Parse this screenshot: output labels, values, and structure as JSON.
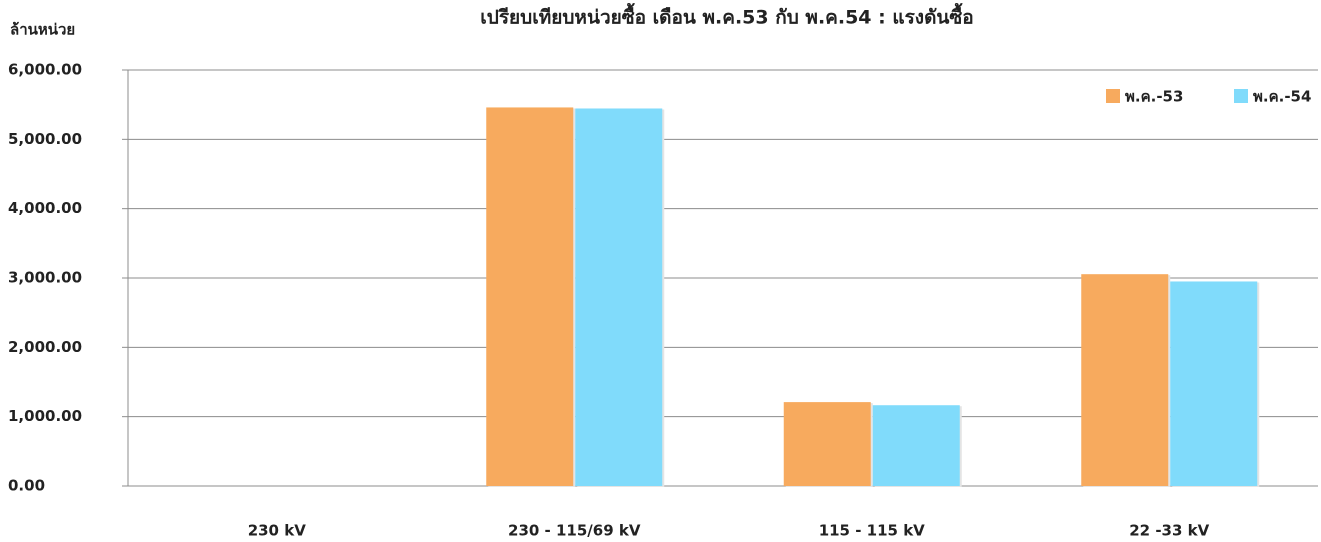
{
  "chart_data": {
    "type": "bar",
    "title": "เปรียบเทียบหน่วยซื้อ เดือน พ.ค.53 กับ พ.ค.54 : แรงดันซื้อ",
    "y_label": "ล้านหน่วย",
    "categories": [
      "230 kV",
      "230 - 115/69 kV",
      "115 - 115 kV",
      "22 -33 kV"
    ],
    "series": [
      {
        "name": "พ.ค.-53",
        "color": "#f7aa5e",
        "values": [
          0,
          5460,
          1210,
          3055
        ]
      },
      {
        "name": "พ.ค.-54",
        "color": "#80dbfb",
        "values": [
          0,
          5445,
          1165,
          2950
        ]
      }
    ],
    "ylim": [
      0,
      6000
    ],
    "yticks": [
      {
        "value": 0,
        "label": "0.00"
      },
      {
        "value": 1000,
        "label": "1,000.00"
      },
      {
        "value": 2000,
        "label": "2,000.00"
      },
      {
        "value": 3000,
        "label": "3,000.00"
      },
      {
        "value": 4000,
        "label": "4,000.00"
      },
      {
        "value": 5000,
        "label": "5,000.00"
      },
      {
        "value": 6000,
        "label": "6,000.00"
      }
    ],
    "grid": true,
    "legend": "top-right"
  }
}
